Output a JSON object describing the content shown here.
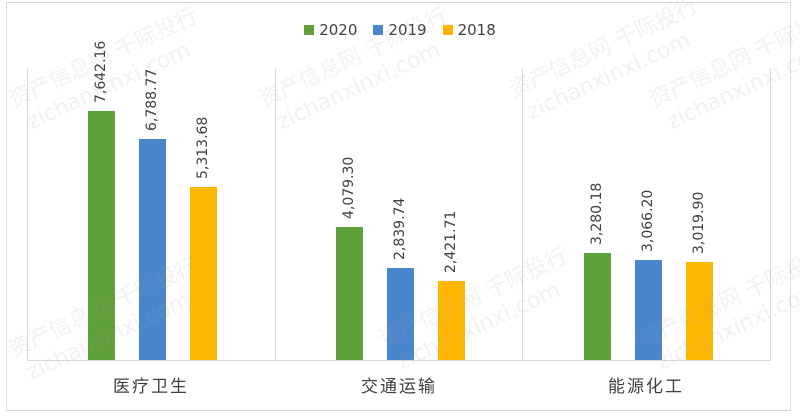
{
  "chart_data": {
    "type": "bar",
    "title": "",
    "xlabel": "",
    "ylabel": "",
    "ylim": [
      0,
      9000
    ],
    "grid": false,
    "legend_position": "top",
    "categories": [
      "医疗卫生",
      "交通运输",
      "能源化工"
    ],
    "series": [
      {
        "name": "2020",
        "color": "#5FA03A",
        "values": [
          7642.16,
          4079.3,
          3280.18
        ],
        "labels": [
          "7,642.16",
          "4,079.30",
          "3,280.18"
        ]
      },
      {
        "name": "2019",
        "color": "#4A86CC",
        "values": [
          6788.77,
          2839.74,
          3066.2
        ],
        "labels": [
          "6,788.77",
          "2,839.74",
          "3,066.20"
        ]
      },
      {
        "name": "2018",
        "color": "#FFB600",
        "values": [
          5313.68,
          2421.71,
          3019.9
        ],
        "labels": [
          "5,313.68",
          "2,421.71",
          "3,019.90"
        ]
      }
    ]
  },
  "watermark": {
    "cn": "资产信息网 千际投行",
    "en": "zichanxinxi.com"
  }
}
